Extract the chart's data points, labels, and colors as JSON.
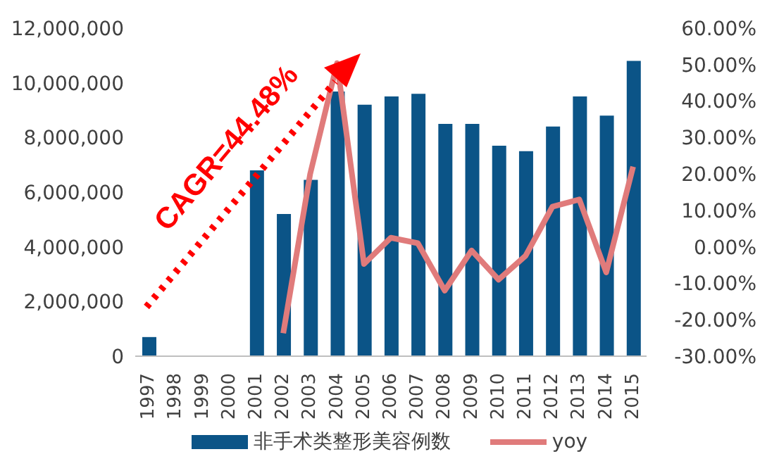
{
  "chart_data": {
    "type": "bar",
    "categories": [
      "1997",
      "1998",
      "1999",
      "2000",
      "2001",
      "2002",
      "2003",
      "2004",
      "2005",
      "2006",
      "2007",
      "2008",
      "2009",
      "2010",
      "2011",
      "2012",
      "2013",
      "2014",
      "2015"
    ],
    "series": [
      {
        "name": "非手术类整形美容例数",
        "color": "#0b5487",
        "values": [
          700000,
          null,
          null,
          null,
          6800000,
          5200000,
          6450000,
          9680000,
          9200000,
          9500000,
          9600000,
          8500000,
          8500000,
          7700000,
          7500000,
          8400000,
          9500000,
          8800000,
          10800000
        ]
      },
      {
        "name": "yoy",
        "type": "line",
        "axis": "y2",
        "color": "#e07b7b",
        "values": [
          null,
          null,
          null,
          null,
          null,
          -23.7,
          20,
          50.4,
          -4.7,
          2.5,
          1,
          -12,
          -1,
          -9,
          -2.5,
          11,
          13,
          -7,
          22
        ]
      }
    ],
    "ylim": [
      0,
      12000000
    ],
    "yticks": [
      {
        "value": 0,
        "label": "0"
      },
      {
        "value": 2000000,
        "label": "2,000,000"
      },
      {
        "value": 4000000,
        "label": "4,000,000"
      },
      {
        "value": 6000000,
        "label": "6,000,000"
      },
      {
        "value": 8000000,
        "label": "8,000,000"
      },
      {
        "value": 10000000,
        "label": "10,000,000"
      },
      {
        "value": 12000000,
        "label": "12,000,000"
      }
    ],
    "y2lim": [
      -30,
      60
    ],
    "y2ticks": [
      {
        "value": -30,
        "label": "-30.00%"
      },
      {
        "value": -20,
        "label": "-20.00%"
      },
      {
        "value": -10,
        "label": "-10.00%"
      },
      {
        "value": 0,
        "label": "0.00%"
      },
      {
        "value": 10,
        "label": "10.00%"
      },
      {
        "value": 20,
        "label": "20.00%"
      },
      {
        "value": 30,
        "label": "30.00%"
      },
      {
        "value": 40,
        "label": "40.00%"
      },
      {
        "value": 50,
        "label": "50.00%"
      },
      {
        "value": 60,
        "label": "60.00%"
      }
    ],
    "annotations": [
      "CAGR=44.48%"
    ],
    "legend": "bottom",
    "marker": "none",
    "line_style": "solid"
  }
}
